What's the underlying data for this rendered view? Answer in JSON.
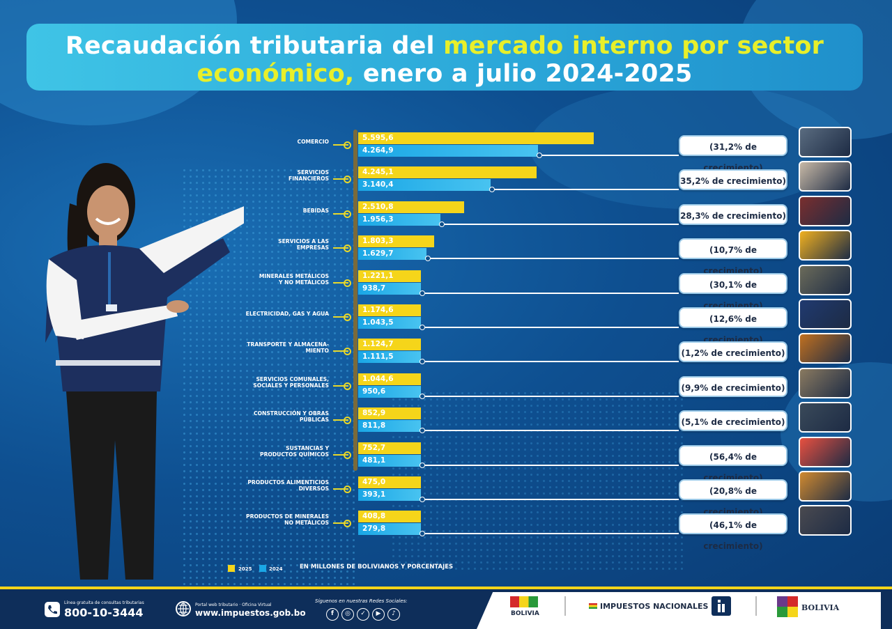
{
  "title": {
    "part1": "Recaudación tributaria del ",
    "part2": "mercado interno por sector",
    "part3": "económico,",
    "part4": " enero a julio 2024-2025"
  },
  "colors": {
    "y2025": "#f5d51a",
    "y2024": "#1aa7e6",
    "accent": "#e8ef2a"
  },
  "chart_data": {
    "type": "bar",
    "categories": [
      "COMERCIO",
      "SERVICIOS FINANCIEROS",
      "BEBIDAS",
      "SERVICIOS A LAS EMPRESAS",
      "MINERALES METÁLICOS Y NO METÁLICOS",
      "ELECTRICIDAD, GAS Y AGUA",
      "TRANSPORTE Y ALMACENA- MIENTO",
      "SERVICIOS COMUNALES, SOCIALES Y PERSONALES",
      "CONSTRUCCIÓN Y OBRAS PÚBLICAS",
      "SUSTANCIAS Y PRODUCTOS QUÍMICOS",
      "PRODUCTOS ALIMENTICIOS DIVERSOS",
      "PRODUCTOS DE MINERALES NO METÁLICOS"
    ],
    "category_lines": [
      [
        "COMERCIO"
      ],
      [
        "SERVICIOS",
        "FINANCIEROS"
      ],
      [
        "BEBIDAS"
      ],
      [
        "SERVICIOS A LAS",
        "EMPRESAS"
      ],
      [
        "MINERALES METÁLICOS",
        "Y NO METÁLICOS"
      ],
      [
        "ELECTRICIDAD, GAS Y AGUA"
      ],
      [
        "TRANSPORTE Y ALMACENA-",
        "MIENTO"
      ],
      [
        "SERVICIOS COMUNALES,",
        "SOCIALES Y PERSONALES"
      ],
      [
        "CONSTRUCCIÓN Y OBRAS",
        "PÚBLICAS"
      ],
      [
        "SUSTANCIAS Y",
        "PRODUCTOS QUÍMICOS"
      ],
      [
        "PRODUCTOS ALIMENTICIOS",
        "DIVERSOS"
      ],
      [
        "PRODUCTOS DE MINERALES",
        "NO METÁLICOS"
      ]
    ],
    "series": [
      {
        "name": "2025",
        "values": [
          5595.6,
          4245.1,
          2510.8,
          1803.3,
          1221.1,
          1174.6,
          1124.7,
          1044.6,
          852.9,
          752.7,
          475.0,
          408.8
        ],
        "labels": [
          "5.595,6",
          "4.245,1",
          "2.510,8",
          "1.803,3",
          "1.221,1",
          "1.174,6",
          "1.124,7",
          "1.044,6",
          "852,9",
          "752,7",
          "475,0",
          "408,8"
        ]
      },
      {
        "name": "2024",
        "values": [
          4264.9,
          3140.4,
          1956.3,
          1629.7,
          938.7,
          1043.5,
          1111.5,
          950.6,
          811.8,
          481.1,
          393.1,
          279.8
        ],
        "labels": [
          "4.264,9",
          "3.140,4",
          "1.956,3",
          "1.629,7",
          "938,7",
          "1.043,5",
          "1.111,5",
          "950,6",
          "811,8",
          "481,1",
          "393,1",
          "279,8"
        ]
      }
    ],
    "growth": [
      "(31,2% de crecimiento)",
      "35,2% de crecimiento)",
      "28,3% de crecimiento)",
      "(10,7% de crecimiento)",
      "(30,1% de crecimiento)",
      "(12,6% de crecimiento)",
      "(1,2% de crecimiento)",
      "(9,9% de crecimiento)",
      "(5,1% de crecimiento)",
      "(56,4% de crecimiento)",
      "(20,8% de crecimiento)",
      "(46,1% de crecimiento)"
    ],
    "thumb_colors": [
      "#5a6c80",
      "#c8b9a6",
      "#7a2e2e",
      "#f0b020",
      "#6b6b5a",
      "#203a70",
      "#c07020",
      "#8a7a60",
      "#3a4a5a",
      "#e85040",
      "#d08a30",
      "#4a4a50"
    ],
    "note": "EN MILLONES DE BOLIVIANOS Y PORCENTAJES"
  },
  "legend": {
    "y2025": "2025",
    "y2024": "2024"
  },
  "footer": {
    "phone_caption": "Línea gratuita de consultas tributarias",
    "phone": "800-10-3444",
    "web_caption": "Portal web tributario · Oficina Virtual",
    "web": "www.impuestos.gob.bo",
    "social_caption": "Síguenos en nuestras Redes Sociales:",
    "social_icons": [
      "facebook-icon",
      "instagram-icon",
      "twitter-icon",
      "youtube-icon",
      "tiktok-icon"
    ],
    "bicentenario": "BOLIVIA",
    "impuestos": "IMPUESTOS NACIONALES",
    "estado": "BOLIVIA"
  }
}
